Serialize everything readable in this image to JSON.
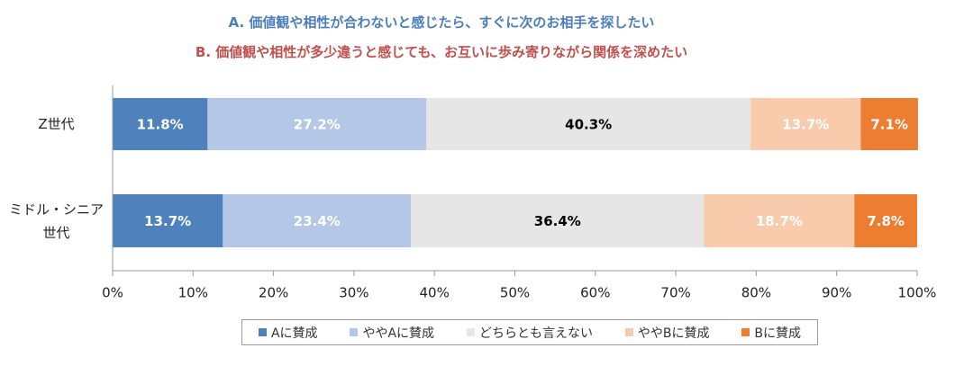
{
  "chart_data": {
    "type": "stacked_barh",
    "title": "A. 価値観や相性が合わないと感じたら、すぐに次のお相手を探したい",
    "subtitle": "B. 価値観や相性が多少違うと感じても、お互いに歩み寄りながら関係を深めたい",
    "categories": [
      "Z世代",
      "ミドル・シニア世代"
    ],
    "series": [
      {
        "name": "Aに賛成",
        "color": "#4f81bd",
        "label_color": "#ffffff",
        "values": [
          11.8,
          13.7
        ],
        "value_labels": [
          "11.8%",
          "13.7%"
        ]
      },
      {
        "name": "ややAに賛成",
        "color": "#b4c7e7",
        "label_color": "#ffffff",
        "values": [
          27.2,
          23.4
        ],
        "value_labels": [
          "27.2%",
          "23.4%"
        ]
      },
      {
        "name": "どちらとも言えない",
        "color": "#e7e6e6",
        "label_color": "#000000",
        "values": [
          40.3,
          36.4
        ],
        "value_labels": [
          "40.3%",
          "36.4%"
        ]
      },
      {
        "name": "ややBに賛成",
        "color": "#f8cbad",
        "label_color": "#ffffff",
        "values": [
          13.7,
          18.7
        ],
        "value_labels": [
          "13.7%",
          "18.7%"
        ]
      },
      {
        "name": "Bに賛成",
        "color": "#ed7d31",
        "label_color": "#ffffff",
        "values": [
          7.1,
          7.8
        ],
        "value_labels": [
          "7.1%",
          "7.8%"
        ]
      }
    ],
    "xlim": [
      0,
      100
    ],
    "xticks": [
      {
        "value": 0,
        "label": "0%"
      },
      {
        "value": 10,
        "label": "10%"
      },
      {
        "value": 20,
        "label": "20%"
      },
      {
        "value": 30,
        "label": "30%"
      },
      {
        "value": 40,
        "label": "40%"
      },
      {
        "value": 50,
        "label": "50%"
      },
      {
        "value": 60,
        "label": "60%"
      },
      {
        "value": 70,
        "label": "70%"
      },
      {
        "value": 80,
        "label": "80%"
      },
      {
        "value": 90,
        "label": "90%"
      },
      {
        "value": 100,
        "label": "100%"
      }
    ],
    "legend": "bottom"
  }
}
